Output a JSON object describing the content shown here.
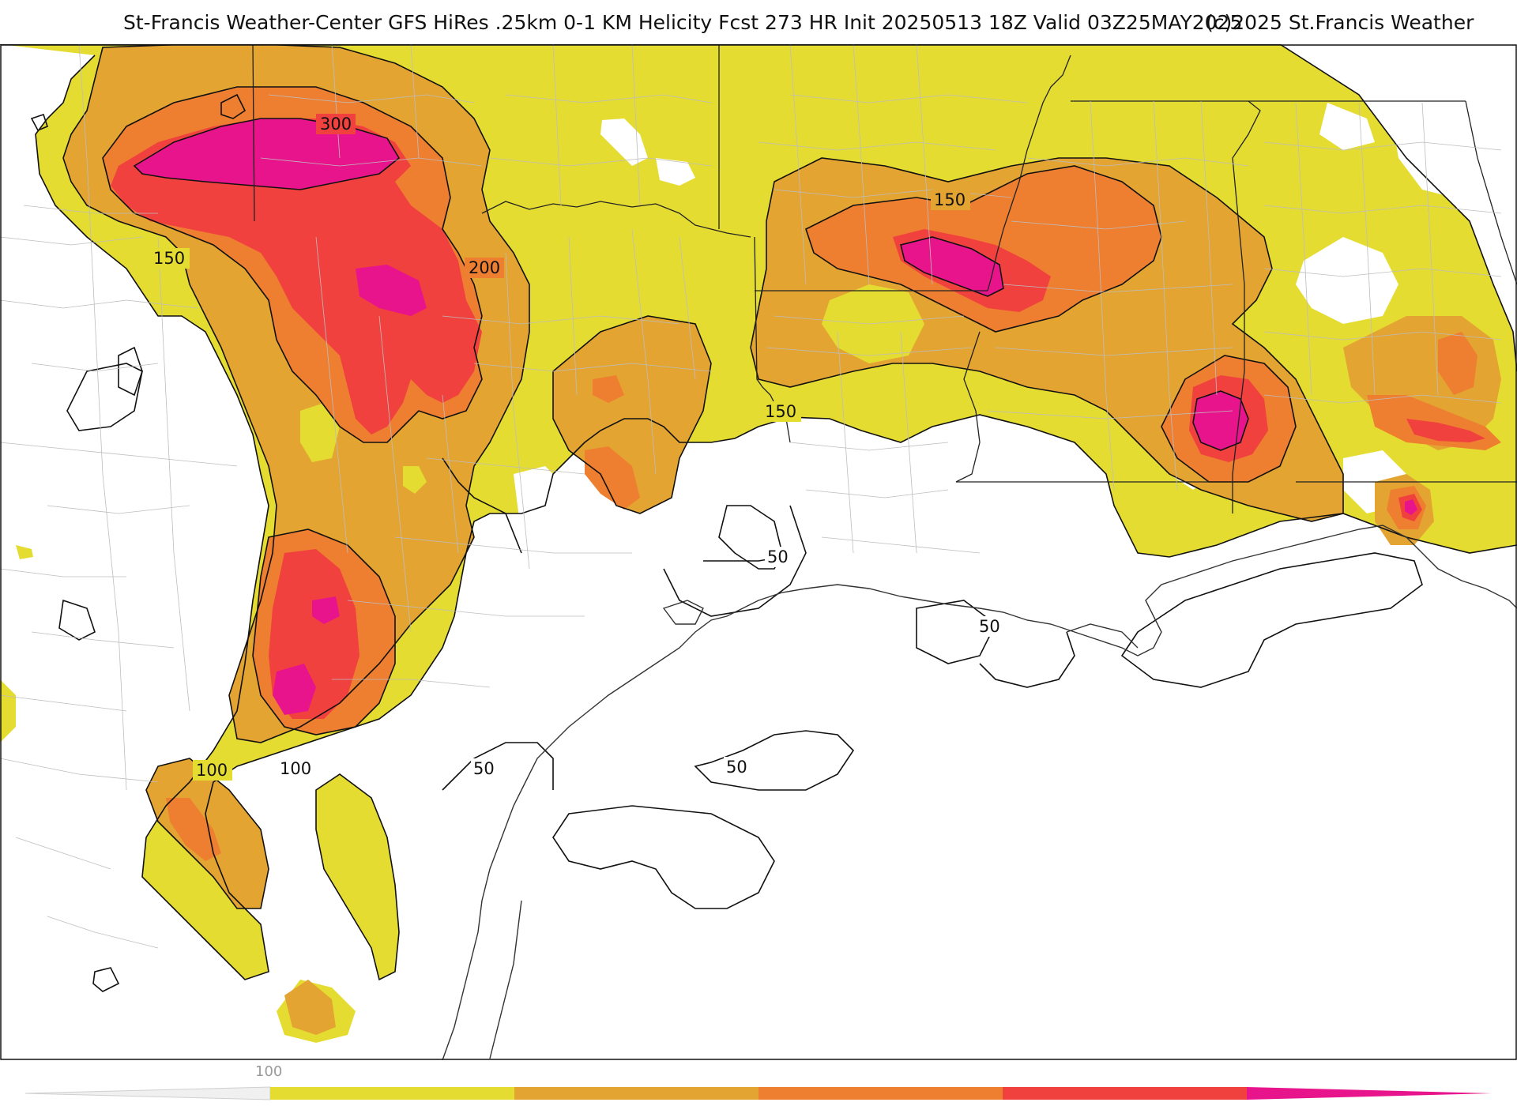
{
  "header": {
    "title": "St-Francis Weather-Center GFS HiRes .25km 0-1 KM Helicity Fcst 273 HR Init 20250513 18Z  Valid 03Z25MAY2025",
    "copyright": "(c)2025 St.Francis Weather"
  },
  "contour_labels": {
    "c300": "300",
    "c200": "200",
    "c150a": "150",
    "c150b": "150",
    "c150c": "150",
    "c100a": "100",
    "c100b": "100",
    "c50a": "50",
    "c50b": "50",
    "c50c": "50",
    "c50d": "50"
  },
  "legend": {
    "tick_label": "100",
    "colors": [
      "#e5dc32",
      "#e3a432",
      "#ee7e30",
      "#f0413f",
      "#e8148c"
    ]
  },
  "colors": {
    "level_100": "#e5dc32",
    "level_150": "#e3a432",
    "level_200": "#ee7e30",
    "level_250": "#f0413f",
    "level_300": "#e8148c"
  }
}
